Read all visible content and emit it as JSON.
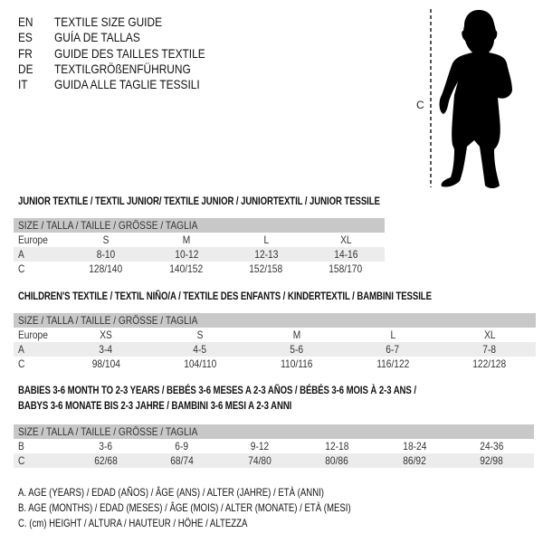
{
  "languages": [
    {
      "code": "EN",
      "name": "TEXTILE SIZE GUIDE"
    },
    {
      "code": "ES",
      "name": "GUÍA DE TALLAS"
    },
    {
      "code": "FR",
      "name": "GUIDE DES TAILLES TEXTILE"
    },
    {
      "code": "DE",
      "name": "TEXTILGRÖßENFÜHRUNG"
    },
    {
      "code": "IT",
      "name": "GUIDA ALLE TAGLIE TESSILI"
    }
  ],
  "figure": {
    "measure_label": "C"
  },
  "junior": {
    "title": "JUNIOR TEXTILE / TEXTIL JUNIOR/ TEXTILE JUNIOR / JUNIORTEXTIL / JUNIOR TESSILE",
    "header": "SIZE / TALLA / TAILLE / GRÖSSE / TAGLIA",
    "rows": [
      {
        "label": "Europe",
        "cells": [
          "S",
          "M",
          "L",
          "XL"
        ]
      },
      {
        "label": "A",
        "cells": [
          "8-10",
          "10-12",
          "12-13",
          "14-16"
        ]
      },
      {
        "label": "C",
        "cells": [
          "128/140",
          "140/152",
          "152/158",
          "158/170"
        ]
      }
    ]
  },
  "children": {
    "title": "CHILDREN'S TEXTILE / TEXTIL NIÑO/A / TEXTILE DES ENFANTS / KINDERTEXTIL / BAMBINI TESSILE",
    "header": "SIZE / TALLA / TAILLE / GRÖSSE / TAGLIA",
    "rows": [
      {
        "label": "Europe",
        "cells": [
          "XS",
          "S",
          "M",
          "L",
          "XL"
        ]
      },
      {
        "label": "A",
        "cells": [
          "3-4",
          "4-5",
          "5-6",
          "6-7",
          "7-8"
        ]
      },
      {
        "label": "C",
        "cells": [
          "98/104",
          "104/110",
          "110/116",
          "116/122",
          "122/128"
        ]
      }
    ]
  },
  "babies": {
    "title_line1": "BABIES 3-6 MONTH TO 2-3 YEARS / BEBÉS 3-6 MESES A 2-3 AÑOS / BÉBÉS 3-6 MOIS À 2-3 ANS /",
    "title_line2": "BABYS 3-6 MONATE BIS 2-3 JAHRE / BAMBINI 3-6 MESI A 2-3 ANNI",
    "header": "SIZE / TALLA / TAILLE / GRÖSSE / TAGLIA",
    "rows": [
      {
        "label": "B",
        "cells": [
          "3-6",
          "6-9",
          "9-12",
          "12-18",
          "18-24",
          "24-36"
        ]
      },
      {
        "label": "C",
        "cells": [
          "62/68",
          "68/74",
          "74/80",
          "80/86",
          "86/92",
          "92/98"
        ]
      }
    ]
  },
  "legend": [
    "A. AGE (YEARS) / EDAD (AÑOS) / ÂGE (ANS) / ALTER (JAHRE) / ETÀ (ANNI)",
    "B. AGE (MONTHS) / EDAD (MESES) / ÂGE (MOIS) / ALTER (MONATE) / ETÀ (MESI)",
    "C. (cm) HEIGHT / ALTURA / HAUTEUR / HÖHE / ALTEZZA"
  ]
}
